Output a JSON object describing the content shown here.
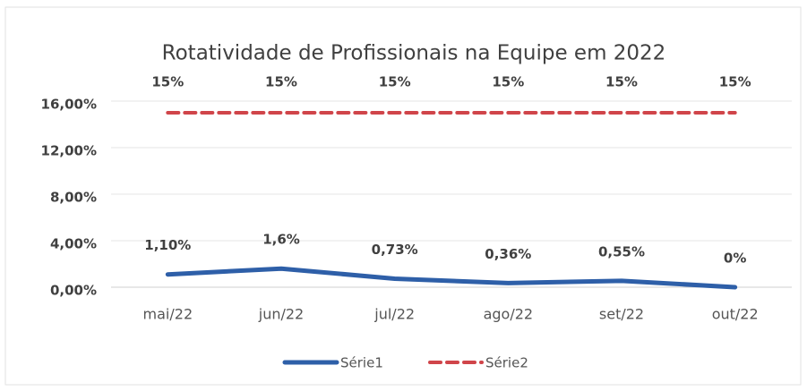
{
  "chart_data": {
    "type": "line",
    "title": "Rotatividade de Profissionais na Equipe em 2022",
    "categories": [
      "mai/22",
      "jun/22",
      "jul/22",
      "ago/22",
      "set/22",
      "out/22"
    ],
    "series": [
      {
        "name": "Série1",
        "color": "#2e5fa8",
        "values": [
          1.1,
          1.6,
          0.73,
          0.36,
          0.55,
          0
        ],
        "value_labels": [
          "1,10%",
          "1,6%",
          "0,73%",
          "0,36%",
          "0,55%",
          "0%"
        ]
      },
      {
        "name": "Série2",
        "color": "#d0454a",
        "values": [
          15,
          15,
          15,
          15,
          15,
          15
        ],
        "value_labels": [
          "15%",
          "15%",
          "15%",
          "15%",
          "15%",
          "15%"
        ]
      }
    ],
    "ylim": [
      0,
      16
    ],
    "yticks": [
      {
        "value": 0,
        "label": "0,00%"
      },
      {
        "value": 4,
        "label": "4,00%"
      },
      {
        "value": 8,
        "label": "8,00%"
      },
      {
        "value": 12,
        "label": "12,00%"
      },
      {
        "value": 16,
        "label": "16,00%"
      }
    ],
    "grid": true,
    "legend": "bottom"
  }
}
